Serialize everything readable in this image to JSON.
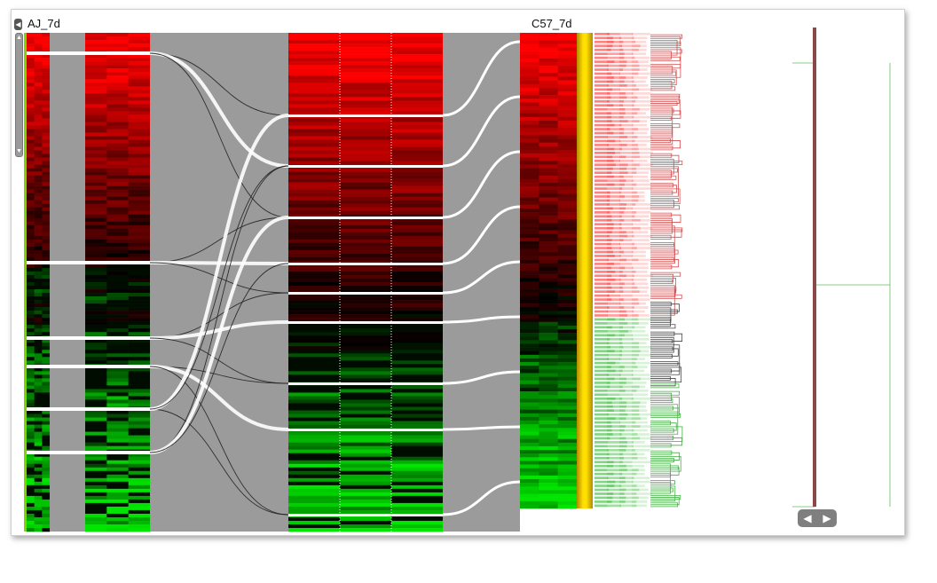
{
  "view": {
    "left_label": "AJ_7d",
    "right_label": "C57_7d",
    "left_handle_icon": "chevron-left-icon",
    "scroll_up_icon": "triangle-up-icon",
    "scroll_down_icon": "triangle-down-icon",
    "scroll_left_icon": "triangle-left-icon",
    "scroll_right_icon": "triangle-right-icon"
  },
  "colors": {
    "up": "#ff0000",
    "down": "#00e000",
    "neutral": "#000000",
    "connector": "#9b9b9b",
    "highlight_bar": "#ffd700",
    "dendrogram_red": "#cc3333",
    "dendrogram_green": "#33bb33"
  }
}
